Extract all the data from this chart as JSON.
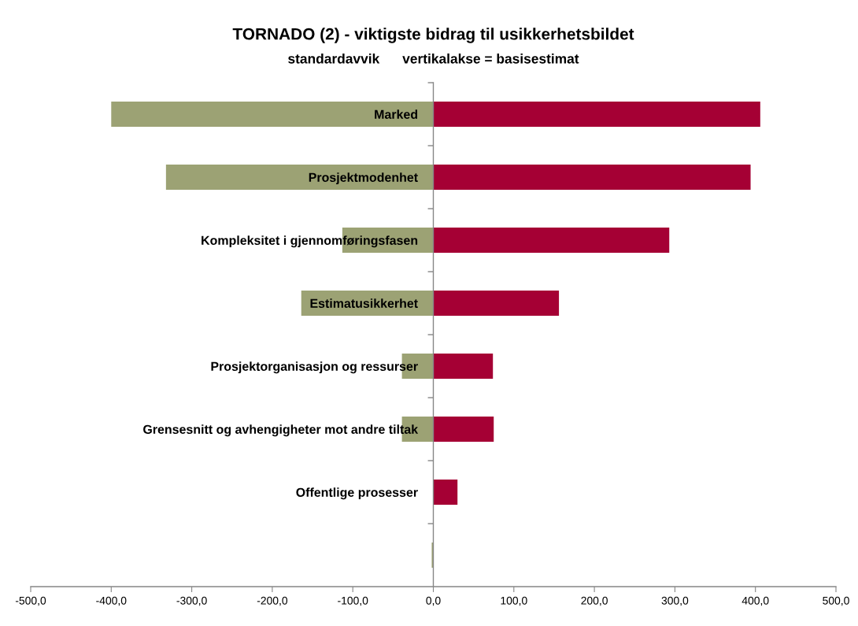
{
  "chart_data": {
    "type": "bar",
    "orientation": "horizontal",
    "stacked": true,
    "title": "TORNADO (2) - viktigste bidrag til usikkerhetsbildet",
    "subtitle": "standardavvik      vertikalakse = basisestimat",
    "categories": [
      "Marked",
      "Prosjektmodenhet",
      "Kompleksitet i gjennomføringsfasen",
      "Estimatusikkerhet",
      "Prosjektorganisasjon og ressurser",
      "Grensesnitt og avhengigheter mot andre tiltak",
      "Offentlige prosesser",
      null
    ],
    "series": [
      {
        "color": "#9ca274",
        "values": [
          -400,
          -332,
          -113,
          -164,
          -39,
          -39,
          null,
          -2
        ]
      },
      {
        "color": "#a50034",
        "values": [
          406,
          394,
          293,
          156,
          74,
          75,
          30,
          null
        ]
      }
    ],
    "xlim": [
      -500,
      500
    ],
    "xticks": [
      {
        "value": -500,
        "label": "-500,0"
      },
      {
        "value": -400,
        "label": "-400,0"
      },
      {
        "value": -300,
        "label": "-300,0"
      },
      {
        "value": -200,
        "label": "-200,0"
      },
      {
        "value": -100,
        "label": "-100,0"
      },
      {
        "value": 0,
        "label": "0,0"
      },
      {
        "value": 100,
        "label": "100,0"
      },
      {
        "value": 200,
        "label": "200,0"
      },
      {
        "value": 300,
        "label": "300,0"
      },
      {
        "value": 400,
        "label": "400,0"
      },
      {
        "value": 500,
        "label": "500,0"
      }
    ]
  }
}
